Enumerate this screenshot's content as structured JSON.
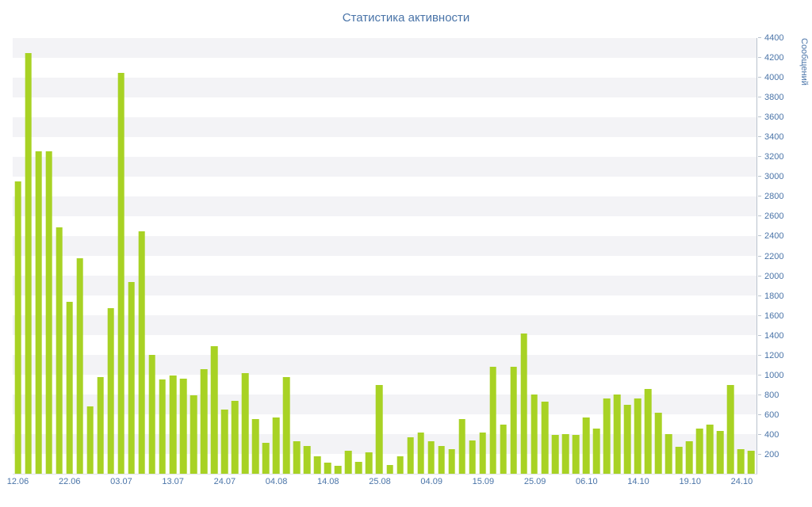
{
  "chart": {
    "title": "Статистика активности",
    "y_axis_title": "Сообщений"
  },
  "colors": {
    "bar": "#a8d224",
    "label": "#4a74a8",
    "stripe": "#f3f3f6",
    "axis_line": "#b9c2cd"
  },
  "chart_data": {
    "type": "bar",
    "title": "Статистика активности",
    "xlabel": "",
    "ylabel": "Сообщений",
    "ylim": [
      0,
      4400
    ],
    "y_tick_step": 200,
    "grid": "banded-stripes",
    "legend": "none",
    "x_tick_labels": [
      "12.06",
      "22.06",
      "03.07",
      "13.07",
      "24.07",
      "04.08",
      "14.08",
      "25.08",
      "04.09",
      "15.09",
      "25.09",
      "06.10",
      "14.10",
      "19.10",
      "24.10"
    ],
    "x_tick_indices": [
      0,
      5,
      10,
      15,
      20,
      25,
      30,
      35,
      40,
      45,
      50,
      55,
      60,
      65,
      70
    ],
    "y_tick_labels": [
      4400,
      4200,
      4000,
      3800,
      3600,
      3400,
      3200,
      3000,
      2800,
      2600,
      2400,
      2200,
      2000,
      1800,
      1600,
      1400,
      1200,
      1000,
      800,
      600,
      400,
      200
    ],
    "values": [
      2950,
      4250,
      3260,
      3260,
      2490,
      1740,
      2180,
      680,
      980,
      1670,
      4050,
      1940,
      2450,
      1200,
      950,
      990,
      960,
      790,
      1060,
      1290,
      650,
      740,
      1020,
      550,
      310,
      570,
      980,
      330,
      280,
      175,
      110,
      80,
      230,
      120,
      215,
      900,
      90,
      180,
      370,
      420,
      330,
      280,
      250,
      550,
      340,
      420,
      1080,
      500,
      1080,
      1420,
      800,
      730,
      390,
      400,
      390,
      570,
      460,
      760,
      800,
      700,
      760,
      860,
      620,
      400,
      270,
      330,
      460,
      500,
      430,
      900,
      250,
      230
    ]
  }
}
